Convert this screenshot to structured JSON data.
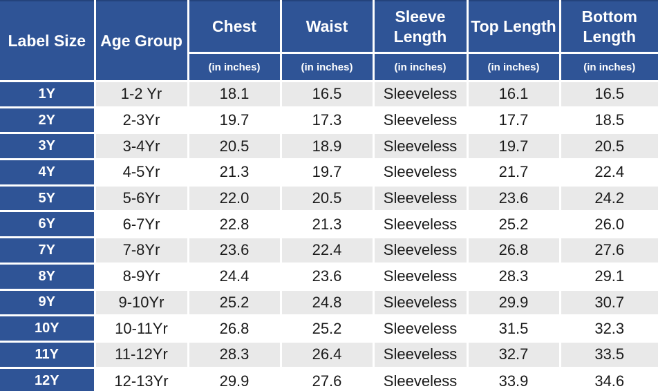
{
  "chart_data": {
    "type": "table",
    "columns": [
      {
        "label": "Label Size",
        "sub": ""
      },
      {
        "label": "Age Group",
        "sub": ""
      },
      {
        "label": "Chest",
        "sub": "(in inches)"
      },
      {
        "label": "Waist",
        "sub": "(in inches)"
      },
      {
        "label": "Sleeve Length",
        "sub": "(in inches)"
      },
      {
        "label": "Top Length",
        "sub": "(in inches)"
      },
      {
        "label": "Bottom Length",
        "sub": "(in inches)"
      }
    ],
    "rows": [
      [
        "1Y",
        "1-2 Yr",
        "18.1",
        "16.5",
        "Sleeveless",
        "16.1",
        "16.5"
      ],
      [
        "2Y",
        "2-3Yr",
        "19.7",
        "17.3",
        "Sleeveless",
        "17.7",
        "18.5"
      ],
      [
        "3Y",
        "3-4Yr",
        "20.5",
        "18.9",
        "Sleeveless",
        "19.7",
        "20.5"
      ],
      [
        "4Y",
        "4-5Yr",
        "21.3",
        "19.7",
        "Sleeveless",
        "21.7",
        "22.4"
      ],
      [
        "5Y",
        "5-6Yr",
        "22.0",
        "20.5",
        "Sleeveless",
        "23.6",
        "24.2"
      ],
      [
        "6Y",
        "6-7Yr",
        "22.8",
        "21.3",
        "Sleeveless",
        "25.2",
        "26.0"
      ],
      [
        "7Y",
        "7-8Yr",
        "23.6",
        "22.4",
        "Sleeveless",
        "26.8",
        "27.6"
      ],
      [
        "8Y",
        "8-9Yr",
        "24.4",
        "23.6",
        "Sleeveless",
        "28.3",
        "29.1"
      ],
      [
        "9Y",
        "9-10Yr",
        "25.2",
        "24.8",
        "Sleeveless",
        "29.9",
        "30.7"
      ],
      [
        "10Y",
        "10-11Yr",
        "26.8",
        "25.2",
        "Sleeveless",
        "31.5",
        "32.3"
      ],
      [
        "11Y",
        "11-12Yr",
        "28.3",
        "26.4",
        "Sleeveless",
        "32.7",
        "33.5"
      ],
      [
        "12Y",
        "12-13Yr",
        "29.9",
        "27.6",
        "Sleeveless",
        "33.9",
        "34.6"
      ]
    ],
    "layout": {
      "grid": "white gridlines, alternating row stripes",
      "header_rows": 2,
      "units_note": "(in inches)"
    },
    "colors": {
      "header_bg": "#2F5496",
      "header_text": "#FFFFFF",
      "row_stripe_bg": "#E9E9E9",
      "row_bg": "#FFFFFF",
      "body_text": "#1A1A1A",
      "gridline": "#FFFFFF",
      "top_rule": "#24437C"
    }
  }
}
